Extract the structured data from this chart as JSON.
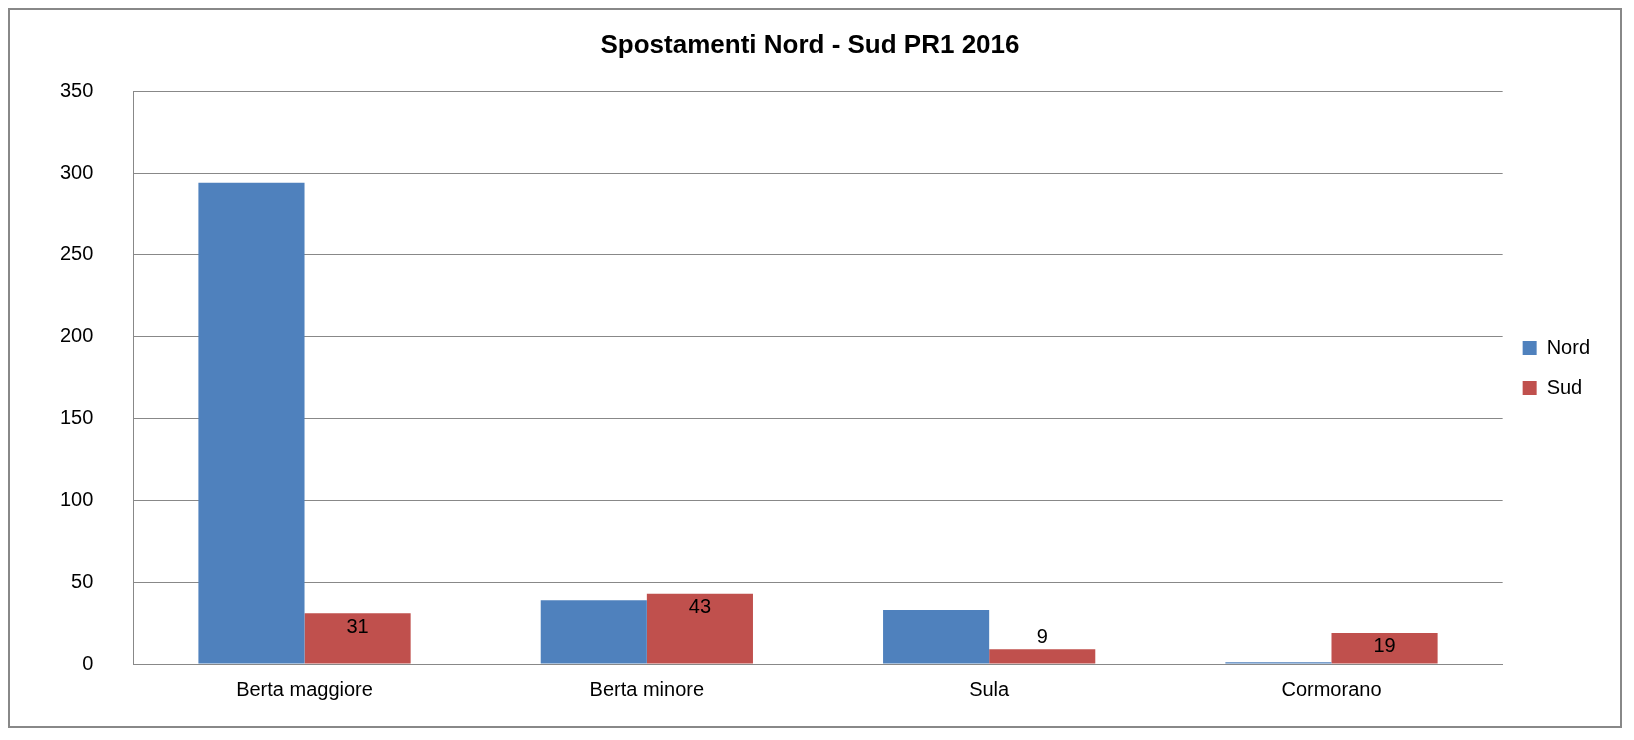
{
  "chart_data": {
    "type": "bar",
    "title": "Spostamenti Nord - Sud PR1 2016",
    "categories": [
      "Berta maggiore",
      "Berta minore",
      "Sula",
      "Cormorano"
    ],
    "series": [
      {
        "name": "Nord",
        "color": "#4f81bd",
        "values": [
          294,
          39,
          33,
          1
        ]
      },
      {
        "name": "Sud",
        "color": "#c0504d",
        "values": [
          31,
          43,
          9,
          19
        ],
        "value_labels": [
          "31",
          "43",
          "9",
          "19"
        ]
      }
    ],
    "ylim": [
      0,
      350
    ],
    "yticks": [
      0,
      50,
      100,
      150,
      200,
      250,
      300,
      350
    ],
    "grid": "y",
    "legend": "right"
  }
}
